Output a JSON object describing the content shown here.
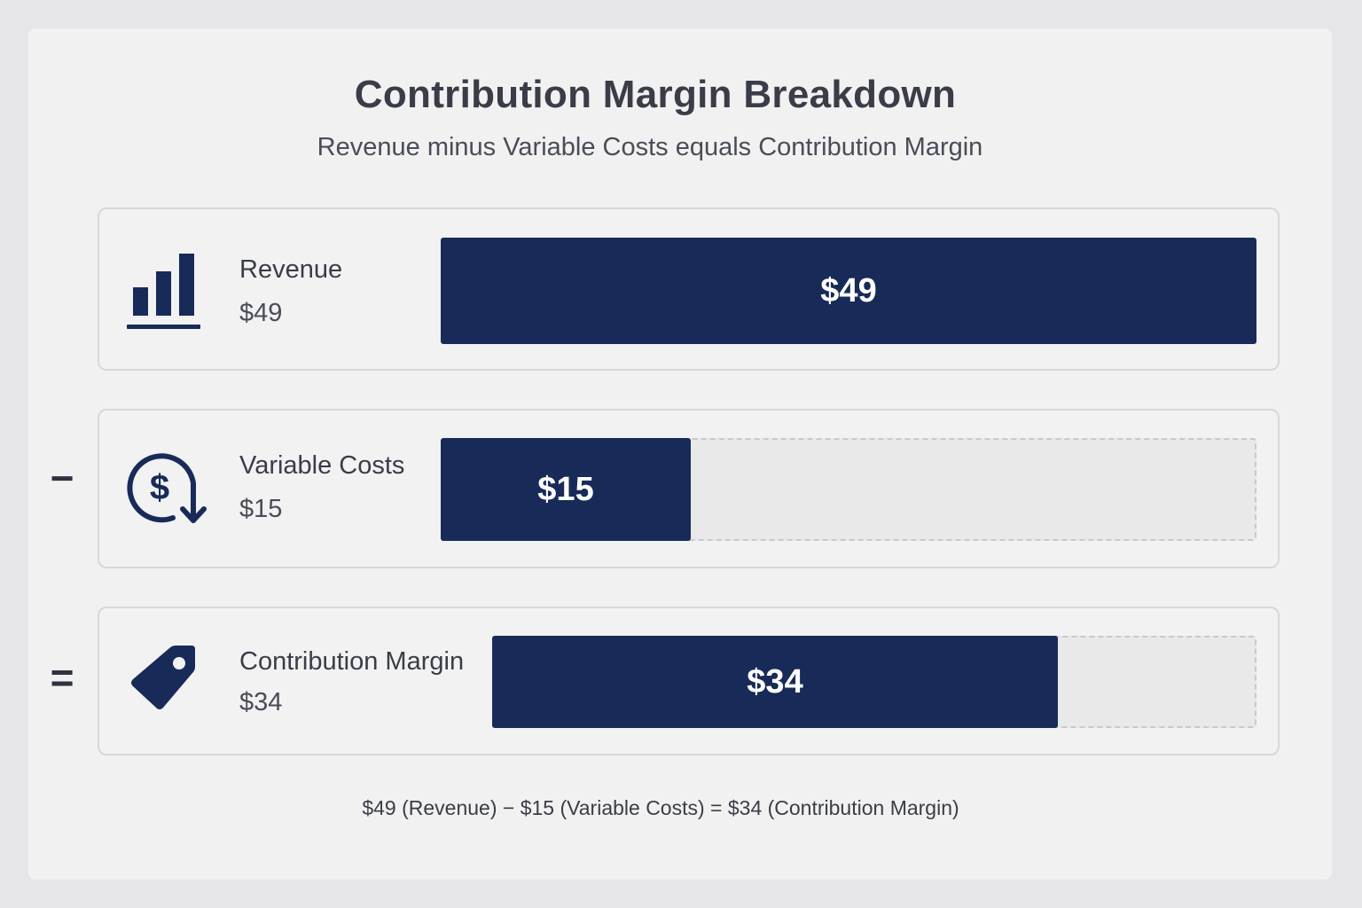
{
  "chart_data": {
    "type": "bar",
    "title": "Contribution Margin Breakdown",
    "subtitle": "Revenue minus Variable Costs equals Contribution Margin",
    "max_value": 49,
    "items": [
      {
        "label": "Revenue",
        "value": 49,
        "value_text": "$49",
        "operator": "",
        "icon": "bar-chart-icon"
      },
      {
        "label": "Variable Costs",
        "value": 15,
        "value_text": "$15",
        "operator": "−",
        "icon": "dollar-down-arrow-icon"
      },
      {
        "label": "Contribution Margin",
        "value": 34,
        "value_text": "$34",
        "operator": "=",
        "icon": "price-tag-icon"
      }
    ],
    "formula": "$49 (Revenue) − $15 (Variable Costs) = $34 (Contribution Margin)"
  },
  "colors": {
    "bar": "#182b58",
    "background": "#f1f1f2",
    "text": "#3a3d47"
  }
}
